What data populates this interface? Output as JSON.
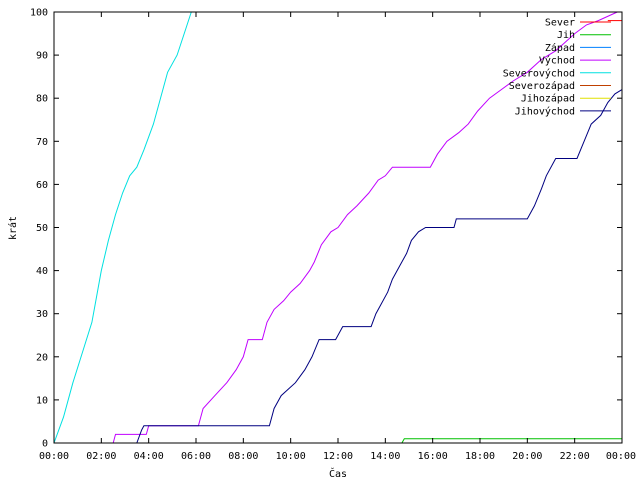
{
  "chart_data": {
    "type": "line",
    "xlabel": "Čas",
    "ylabel": "krát",
    "xlim": [
      0,
      24
    ],
    "ylim": [
      0,
      100
    ],
    "x_ticks": [
      0,
      2,
      4,
      6,
      8,
      10,
      12,
      14,
      16,
      18,
      20,
      22,
      24
    ],
    "x_tick_labels": [
      "00:00",
      "02:00",
      "04:00",
      "06:00",
      "08:00",
      "10:00",
      "12:00",
      "14:00",
      "16:00",
      "18:00",
      "20:00",
      "22:00",
      "00:00"
    ],
    "y_ticks": [
      0,
      10,
      20,
      30,
      40,
      50,
      60,
      70,
      80,
      90,
      100
    ],
    "grid": false,
    "legend_position": "top-right",
    "series": [
      {
        "name": "Sever",
        "color": "#ff0000",
        "points": [
          [
            23.4,
            98
          ],
          [
            24,
            98
          ]
        ]
      },
      {
        "name": "Jih",
        "color": "#00c000",
        "points": [
          [
            0,
            0
          ],
          [
            14.7,
            0
          ],
          [
            14.8,
            1
          ],
          [
            24,
            1
          ]
        ]
      },
      {
        "name": "Západ",
        "color": "#0080ff",
        "points": []
      },
      {
        "name": "Východ",
        "color": "#c000ff",
        "points": [
          [
            0,
            0
          ],
          [
            2.5,
            0
          ],
          [
            2.6,
            2
          ],
          [
            3.9,
            2
          ],
          [
            4.0,
            4
          ],
          [
            6.1,
            4
          ],
          [
            6.3,
            8
          ],
          [
            6.8,
            11
          ],
          [
            7.3,
            14
          ],
          [
            7.7,
            17
          ],
          [
            8.0,
            20
          ],
          [
            8.2,
            24
          ],
          [
            8.8,
            24
          ],
          [
            9.0,
            28
          ],
          [
            9.3,
            31
          ],
          [
            9.7,
            33
          ],
          [
            10.0,
            35
          ],
          [
            10.4,
            37
          ],
          [
            10.8,
            40
          ],
          [
            11.0,
            42
          ],
          [
            11.3,
            46
          ],
          [
            11.7,
            49
          ],
          [
            12.0,
            50
          ],
          [
            12.4,
            53
          ],
          [
            12.8,
            55
          ],
          [
            13.3,
            58
          ],
          [
            13.7,
            61
          ],
          [
            14.0,
            62
          ],
          [
            14.3,
            64
          ],
          [
            15.9,
            64
          ],
          [
            16.2,
            67
          ],
          [
            16.6,
            70
          ],
          [
            17.1,
            72
          ],
          [
            17.5,
            74
          ],
          [
            17.9,
            77
          ],
          [
            18.4,
            80
          ],
          [
            18.9,
            82
          ],
          [
            19.4,
            84
          ],
          [
            20.0,
            86
          ],
          [
            20.6,
            89
          ],
          [
            21.2,
            91
          ],
          [
            21.6,
            93
          ],
          [
            22.0,
            95
          ],
          [
            22.5,
            97
          ],
          [
            23.0,
            98
          ],
          [
            23.8,
            100
          ]
        ]
      },
      {
        "name": "Severovýchod",
        "color": "#00e0e0",
        "points": [
          [
            0,
            0
          ],
          [
            0.4,
            6
          ],
          [
            0.8,
            14
          ],
          [
            1.2,
            21
          ],
          [
            1.6,
            28
          ],
          [
            1.8,
            34
          ],
          [
            2.0,
            40
          ],
          [
            2.3,
            47
          ],
          [
            2.6,
            53
          ],
          [
            2.9,
            58
          ],
          [
            3.2,
            62
          ],
          [
            3.5,
            64
          ],
          [
            3.8,
            68
          ],
          [
            4.2,
            74
          ],
          [
            4.5,
            80
          ],
          [
            4.8,
            86
          ],
          [
            5.2,
            90
          ],
          [
            5.5,
            95
          ],
          [
            5.8,
            100
          ]
        ]
      },
      {
        "name": "Severozápad",
        "color": "#c04000",
        "points": []
      },
      {
        "name": "Jihozápad",
        "color": "#e0e000",
        "points": []
      },
      {
        "name": "Jihovýchod",
        "color": "#000080",
        "points": [
          [
            0,
            0
          ],
          [
            3.5,
            0
          ],
          [
            3.7,
            3
          ],
          [
            3.8,
            4
          ],
          [
            9.1,
            4
          ],
          [
            9.3,
            8
          ],
          [
            9.6,
            11
          ],
          [
            10.2,
            14
          ],
          [
            10.6,
            17
          ],
          [
            10.9,
            20
          ],
          [
            11.2,
            24
          ],
          [
            11.9,
            24
          ],
          [
            12.2,
            27
          ],
          [
            13.4,
            27
          ],
          [
            13.6,
            30
          ],
          [
            13.8,
            32
          ],
          [
            14.1,
            35
          ],
          [
            14.3,
            38
          ],
          [
            14.6,
            41
          ],
          [
            14.9,
            44
          ],
          [
            15.1,
            47
          ],
          [
            15.4,
            49
          ],
          [
            15.7,
            50
          ],
          [
            16.9,
            50
          ],
          [
            17.0,
            52
          ],
          [
            20.0,
            52
          ],
          [
            20.3,
            55
          ],
          [
            20.6,
            59
          ],
          [
            20.8,
            62
          ],
          [
            21.2,
            66
          ],
          [
            22.1,
            66
          ],
          [
            22.4,
            70
          ],
          [
            22.7,
            74
          ],
          [
            23.1,
            76
          ],
          [
            23.4,
            79
          ],
          [
            23.7,
            81
          ],
          [
            24.0,
            82
          ]
        ]
      }
    ]
  }
}
